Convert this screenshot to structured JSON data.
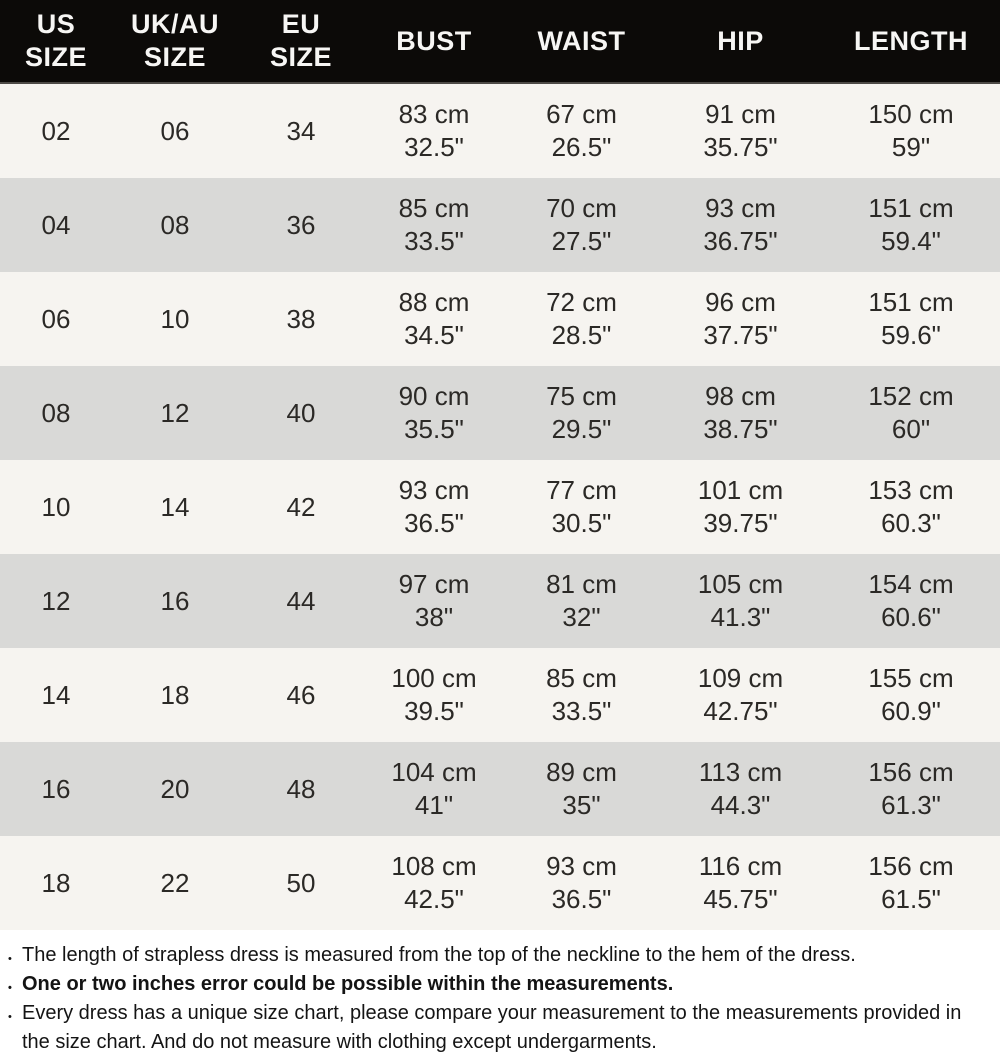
{
  "table": {
    "headers": [
      {
        "id": "us",
        "lines": [
          "US",
          "SIZE"
        ]
      },
      {
        "id": "uk_au",
        "lines": [
          "UK/AU",
          "SIZE"
        ]
      },
      {
        "id": "eu",
        "lines": [
          "EU",
          "SIZE"
        ]
      },
      {
        "id": "bust",
        "lines": [
          "BUST"
        ]
      },
      {
        "id": "waist",
        "lines": [
          "WAIST"
        ]
      },
      {
        "id": "hip",
        "lines": [
          "HIP"
        ]
      },
      {
        "id": "length",
        "lines": [
          "LENGTH"
        ]
      }
    ],
    "rows": [
      {
        "us": "02",
        "uk_au": "06",
        "eu": "34",
        "bust": [
          "83 cm",
          "32.5\""
        ],
        "waist": [
          "67 cm",
          "26.5\""
        ],
        "hip": [
          "91 cm",
          "35.75\""
        ],
        "length": [
          "150 cm",
          "59\""
        ]
      },
      {
        "us": "04",
        "uk_au": "08",
        "eu": "36",
        "bust": [
          "85 cm",
          "33.5\""
        ],
        "waist": [
          "70 cm",
          "27.5\""
        ],
        "hip": [
          "93 cm",
          "36.75\""
        ],
        "length": [
          "151 cm",
          "59.4\""
        ]
      },
      {
        "us": "06",
        "uk_au": "10",
        "eu": "38",
        "bust": [
          "88 cm",
          "34.5\""
        ],
        "waist": [
          "72 cm",
          "28.5\""
        ],
        "hip": [
          "96 cm",
          "37.75\""
        ],
        "length": [
          "151 cm",
          "59.6\""
        ]
      },
      {
        "us": "08",
        "uk_au": "12",
        "eu": "40",
        "bust": [
          "90 cm",
          "35.5\""
        ],
        "waist": [
          "75 cm",
          "29.5\""
        ],
        "hip": [
          "98 cm",
          "38.75\""
        ],
        "length": [
          "152 cm",
          "60\""
        ]
      },
      {
        "us": "10",
        "uk_au": "14",
        "eu": "42",
        "bust": [
          "93 cm",
          "36.5\""
        ],
        "waist": [
          "77 cm",
          "30.5\""
        ],
        "hip": [
          "101 cm",
          "39.75\""
        ],
        "length": [
          "153 cm",
          "60.3\""
        ]
      },
      {
        "us": "12",
        "uk_au": "16",
        "eu": "44",
        "bust": [
          "97 cm",
          "38\""
        ],
        "waist": [
          "81 cm",
          "32\""
        ],
        "hip": [
          "105 cm",
          "41.3\""
        ],
        "length": [
          "154 cm",
          "60.6\""
        ]
      },
      {
        "us": "14",
        "uk_au": "18",
        "eu": "46",
        "bust": [
          "100 cm",
          "39.5\""
        ],
        "waist": [
          "85 cm",
          "33.5\""
        ],
        "hip": [
          "109 cm",
          "42.75\""
        ],
        "length": [
          "155 cm",
          "60.9\""
        ]
      },
      {
        "us": "16",
        "uk_au": "20",
        "eu": "48",
        "bust": [
          "104 cm",
          "41\""
        ],
        "waist": [
          "89 cm",
          "35\""
        ],
        "hip": [
          "113 cm",
          "44.3\""
        ],
        "length": [
          "156 cm",
          "61.3\""
        ]
      },
      {
        "us": "18",
        "uk_au": "22",
        "eu": "50",
        "bust": [
          "108 cm",
          "42.5\""
        ],
        "waist": [
          "93 cm",
          "36.5\""
        ],
        "hip": [
          "116 cm",
          "45.75\""
        ],
        "length": [
          "156 cm",
          "61.5\""
        ]
      }
    ]
  },
  "notes": [
    {
      "text": "The length of strapless dress is measured from the top of the neckline to the hem of the dress.",
      "bold": false
    },
    {
      "text": "One or two inches error could be possible within the measurements.",
      "bold": true
    },
    {
      "text": "Every dress has a unique size chart, please compare your measurement to the measurements provided in the size chart. And do not measure with clothing except undergarments.",
      "bold": false
    }
  ],
  "colors": {
    "header_bg": "#0c0a08",
    "header_text": "#f7f6f4",
    "row_light": "#f6f4f0",
    "row_dark": "#d9d9d7",
    "cell_text": "#2b2926",
    "notes_bg": "#ffffff",
    "notes_text": "#141414"
  }
}
